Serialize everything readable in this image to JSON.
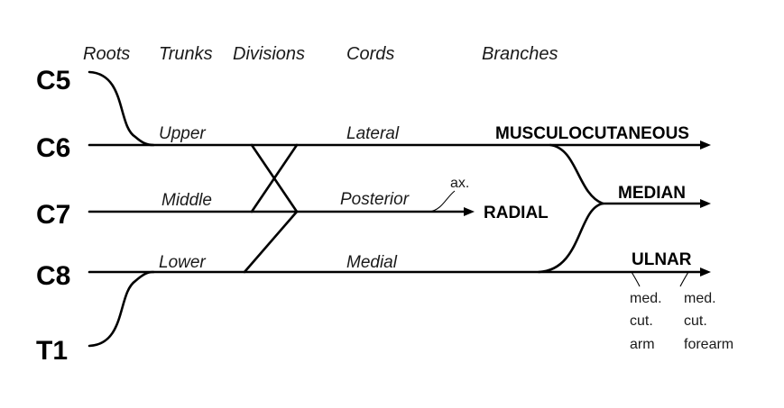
{
  "headers": {
    "roots": "Roots",
    "trunks": "Trunks",
    "divisions": "Divisions",
    "cords": "Cords",
    "branches": "Branches"
  },
  "roots": [
    "C5",
    "C6",
    "C7",
    "C8",
    "T1"
  ],
  "trunks": {
    "upper": "Upper",
    "middle": "Middle",
    "lower": "Lower"
  },
  "cords": {
    "lateral": "Lateral",
    "posterior": "Posterior",
    "medial": "Medial"
  },
  "branches": {
    "musculocutaneous": "MUSCULOCUTANEOUS",
    "median": "MEDIAN",
    "radial": "RADIAL",
    "ulnar": "ULNAR",
    "axillary": "ax.",
    "med_cut_arm": [
      "med.",
      "cut.",
      "arm"
    ],
    "med_cut_forearm": [
      "med.",
      "cut.",
      "forearm"
    ]
  }
}
